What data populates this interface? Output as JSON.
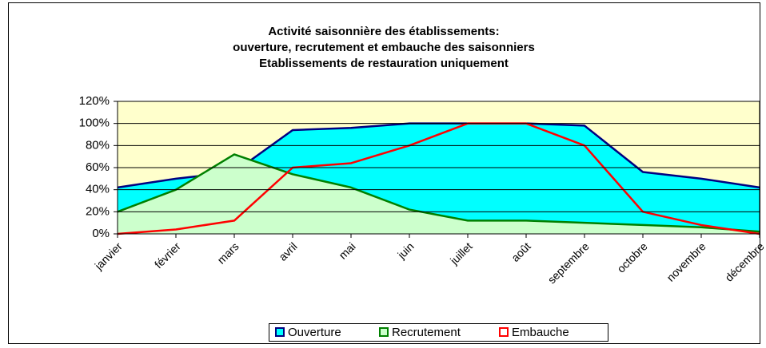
{
  "chart_data": {
    "type": "area",
    "title": [
      "Activité saisonnière des établissements:",
      "ouverture, recrutement et embauche des saisonniers",
      "Etablissements de restauration uniquement"
    ],
    "categories": [
      "janvier",
      "février",
      "mars",
      "avril",
      "mai",
      "juin",
      "juillet",
      "août",
      "septembre",
      "octobre",
      "novembre",
      "décembre"
    ],
    "series": [
      {
        "name": "Ouverture",
        "color": "#000080",
        "fill": "#00ffff",
        "values": [
          42,
          50,
          56,
          94,
          96,
          100,
          100,
          100,
          98,
          56,
          50,
          42
        ]
      },
      {
        "name": "Recrutement",
        "color": "#008000",
        "fill": "#ccffcc",
        "values": [
          20,
          40,
          72,
          54,
          42,
          22,
          12,
          12,
          10,
          8,
          6,
          2
        ]
      },
      {
        "name": "Embauche",
        "color": "#ff0000",
        "fill": null,
        "values": [
          0,
          4,
          12,
          60,
          64,
          80,
          100,
          100,
          80,
          20,
          8,
          0
        ]
      }
    ],
    "ylim": [
      0,
      120
    ],
    "yticks": [
      {
        "value": 0,
        "label": "0%"
      },
      {
        "value": 20,
        "label": "20%"
      },
      {
        "value": 40,
        "label": "40%"
      },
      {
        "value": 60,
        "label": "60%"
      },
      {
        "value": 80,
        "label": "80%"
      },
      {
        "value": 100,
        "label": "100%"
      },
      {
        "value": 120,
        "label": "120%"
      }
    ],
    "grid": true,
    "plot_background": "#ffffcc",
    "legend": "bottom"
  }
}
